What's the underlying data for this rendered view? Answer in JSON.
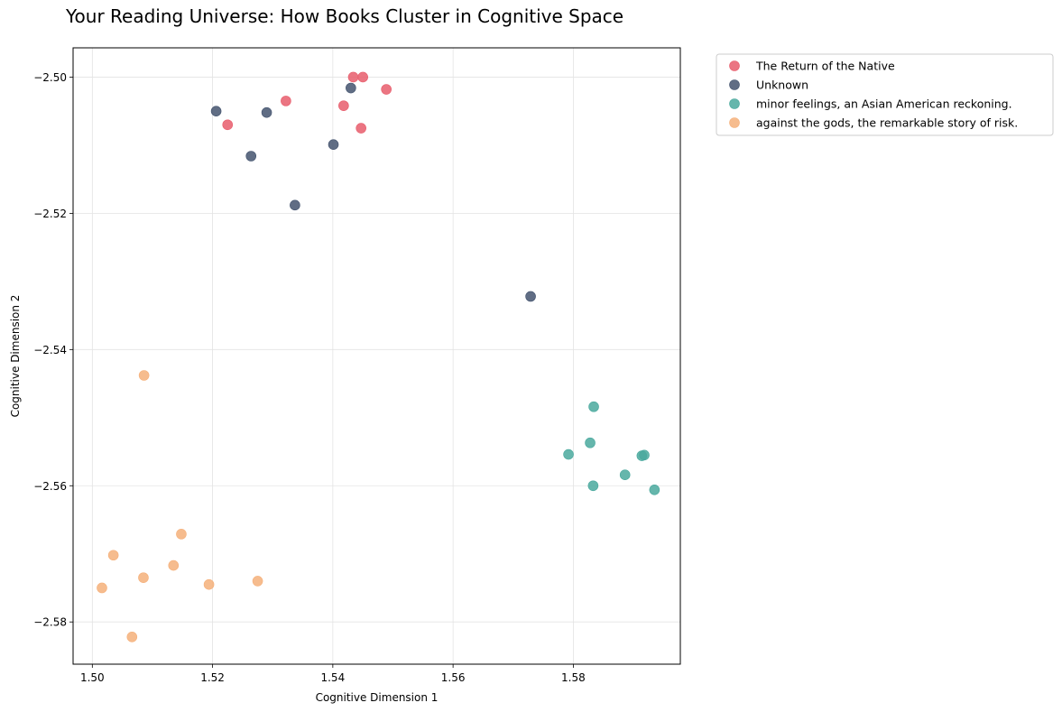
{
  "chart_data": {
    "type": "scatter",
    "title": "Your Reading Universe: How Books Cluster in Cognitive Space",
    "xlabel": "Cognitive Dimension 1",
    "ylabel": "Cognitive Dimension 2",
    "xlim": [
      1.4968,
      1.5978
    ],
    "ylim": [
      -2.5862,
      -2.4957
    ],
    "xticks": [
      1.5,
      1.52,
      1.54,
      1.56,
      1.58
    ],
    "xtick_labels": [
      "1.50",
      "1.52",
      "1.54",
      "1.56",
      "1.58"
    ],
    "yticks": [
      -2.5,
      -2.52,
      -2.54,
      -2.56,
      -2.58
    ],
    "ytick_labels": [
      "−2.50",
      "−2.52",
      "−2.54",
      "−2.56",
      "−2.58"
    ],
    "grid": true,
    "legend_position": "outside-top-right",
    "series": [
      {
        "name": "The Return of the Native",
        "color": "#e85d6c",
        "points": [
          [
            1.5434,
            -2.5
          ],
          [
            1.545,
            -2.5
          ],
          [
            1.5489,
            -2.5018
          ],
          [
            1.5322,
            -2.5035
          ],
          [
            1.5418,
            -2.5042
          ],
          [
            1.5447,
            -2.5075
          ],
          [
            1.5225,
            -2.507
          ]
        ]
      },
      {
        "name": "Unknown",
        "color": "#44546f",
        "points": [
          [
            1.5206,
            -2.505
          ],
          [
            1.529,
            -2.5052
          ],
          [
            1.543,
            -2.5016
          ],
          [
            1.5401,
            -2.5099
          ],
          [
            1.5264,
            -2.5116
          ],
          [
            1.5337,
            -2.5188
          ],
          [
            1.5729,
            -2.5322
          ]
        ]
      },
      {
        "name": "minor feelings, an Asian American reckoning.",
        "color": "#4aa99e",
        "points": [
          [
            1.5834,
            -2.5484
          ],
          [
            1.5828,
            -2.5537
          ],
          [
            1.5792,
            -2.5554
          ],
          [
            1.5914,
            -2.5556
          ],
          [
            1.5918,
            -2.5555
          ],
          [
            1.5886,
            -2.5584
          ],
          [
            1.5833,
            -2.56
          ],
          [
            1.5935,
            -2.5606
          ]
        ]
      },
      {
        "name": "against the gods, the remarkable story of risk.",
        "color": "#f5b07a",
        "points": [
          [
            1.5086,
            -2.5438
          ],
          [
            1.5148,
            -2.5671
          ],
          [
            1.5035,
            -2.5702
          ],
          [
            1.5135,
            -2.5717
          ],
          [
            1.5085,
            -2.5735
          ],
          [
            1.5275,
            -2.574
          ],
          [
            1.5194,
            -2.5745
          ],
          [
            1.5016,
            -2.575
          ],
          [
            1.5066,
            -2.5822
          ]
        ]
      }
    ]
  }
}
